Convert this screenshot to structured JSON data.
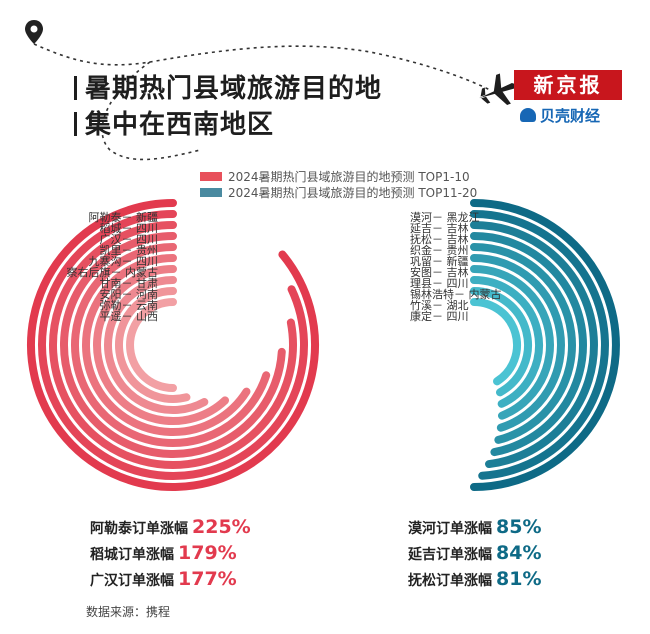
{
  "title": {
    "line1": "暑期热门县域旅游目的地",
    "line2": "集中在西南地区"
  },
  "brand": {
    "name": "新京报",
    "sub": "贝壳财经"
  },
  "colors": {
    "red": "#e23a4e",
    "blue": "#0e6a86",
    "red_light": "#f2a0a4",
    "blue_light": "#4bc3d3"
  },
  "icons": [
    "map-pin-icon",
    "airplane-icon",
    "shell-icon"
  ],
  "source": "数据来源：携程",
  "chart_data": {
    "type": "radial-bar",
    "legend": [
      {
        "label": "2024暑期热门县域旅游目的地预测 TOP1-10",
        "color": "#e8505b"
      },
      {
        "label": "2024暑期热门县域旅游目的地预测 TOP11-20",
        "color": "#4a8aa0"
      }
    ],
    "legend_position": "top",
    "series": [
      {
        "name": "2024暑期热门县域旅游目的地预测 TOP1-10",
        "color": "#e23a4e",
        "categories": [
          "阿勒泰－ 新疆",
          "稻城－ 四川",
          "广汉－ 四川",
          "凯里－ 贵州",
          "九寨沟－ 四川",
          "察右后旗－ 内蒙古",
          "甘南－ 甘肃",
          "安阳－ 河南",
          "弥勒－ 云南",
          "平遥－ 山西"
        ],
        "values_percent_of_circle": [
          86,
          82,
          78,
          74,
          70,
          66,
          62,
          58,
          54,
          50
        ]
      },
      {
        "name": "2024暑期热门县域旅游目的地预测 TOP11-20",
        "color": "#0e6a86",
        "categories": [
          "漠河－ 黑龙江",
          "延吉－ 吉林",
          "抚松－ 吉林",
          "织金－ 贵州",
          "巩留－ 新疆",
          "安图－ 吉林",
          "理县－ 四川",
          "锡林浩特－ 内蒙古",
          "竹溪－ 湖北",
          "康定－ 四川"
        ],
        "values_percent_of_circle": [
          50,
          49,
          48,
          47,
          46,
          45,
          44,
          43,
          42,
          41
        ]
      }
    ],
    "highlights": [
      {
        "label": "阿勒泰订单涨幅",
        "value": "225%",
        "series": 0
      },
      {
        "label": "稻城订单涨幅",
        "value": "179%",
        "series": 0
      },
      {
        "label": "广汉订单涨幅",
        "value": "177%",
        "series": 0
      },
      {
        "label": "漠河订单涨幅",
        "value": "85%",
        "series": 1
      },
      {
        "label": "延吉订单涨幅",
        "value": "84%",
        "series": 1
      },
      {
        "label": "抚松订单涨幅",
        "value": "81%",
        "series": 1
      }
    ]
  }
}
